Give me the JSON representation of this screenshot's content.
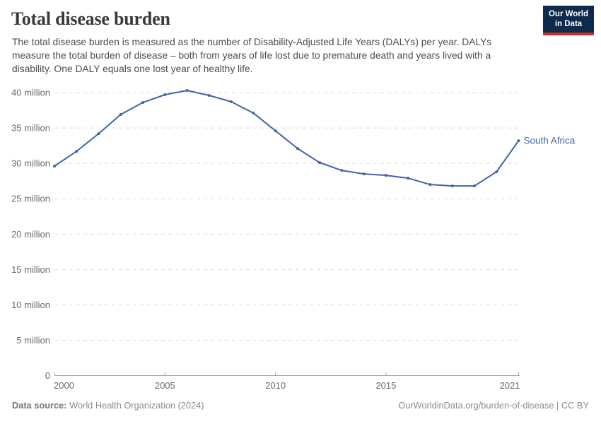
{
  "header": {
    "title": "Total disease burden",
    "subtitle": "The total disease burden is measured as the number of Disability-Adjusted Life Years (DALYs) per year. DALYs measure the total burden of disease – both from years of life lost due to premature death and years lived with a disability. One DALY equals one lost year of healthy life.",
    "logo_line1": "Our World",
    "logo_line2": "in Data"
  },
  "chart_data": {
    "type": "line",
    "title": "Total disease burden",
    "unit": "DALYs per year",
    "x": [
      2000,
      2001,
      2002,
      2003,
      2004,
      2005,
      2006,
      2007,
      2008,
      2009,
      2010,
      2011,
      2012,
      2013,
      2014,
      2015,
      2016,
      2017,
      2018,
      2019,
      2020,
      2021
    ],
    "series": [
      {
        "name": "South Africa",
        "values_millions": [
          29.6,
          31.7,
          34.2,
          36.9,
          38.6,
          39.7,
          40.3,
          39.6,
          38.7,
          37.1,
          34.6,
          32.1,
          30.1,
          29.0,
          28.5,
          28.3,
          27.9,
          27.0,
          26.8,
          26.8,
          28.8,
          33.2
        ]
      }
    ],
    "end_label": "South Africa",
    "ylim": [
      0,
      40
    ],
    "yticks": [
      {
        "value": 0,
        "label": "0"
      },
      {
        "value": 5,
        "label": "5 million"
      },
      {
        "value": 10,
        "label": "10 million"
      },
      {
        "value": 15,
        "label": "15 million"
      },
      {
        "value": 20,
        "label": "20 million"
      },
      {
        "value": 25,
        "label": "25 million"
      },
      {
        "value": 30,
        "label": "30 million"
      },
      {
        "value": 35,
        "label": "35 million"
      },
      {
        "value": 40,
        "label": "40 million"
      }
    ],
    "xticks": [
      {
        "value": 2000,
        "label": "2000"
      },
      {
        "value": 2005,
        "label": "2005"
      },
      {
        "value": 2010,
        "label": "2010"
      },
      {
        "value": 2015,
        "label": "2015"
      },
      {
        "value": 2021,
        "label": "2021"
      }
    ],
    "grid": "horizontal-dashed",
    "legend_position": "end-of-line",
    "line_color": "#4265a7"
  },
  "footer": {
    "data_source_label": "Data source:",
    "data_source_value": "World Health Organization (2024)",
    "attribution": "OurWorldinData.org/burden-of-disease | CC BY"
  },
  "colors": {
    "accent_line": "#4265a7",
    "logo_bg": "#0e2a4d",
    "logo_stripe": "#cf2d23",
    "grid": "#dcdcdc",
    "axis": "#a3a3a3",
    "tick_text": "#6a6a6a"
  }
}
